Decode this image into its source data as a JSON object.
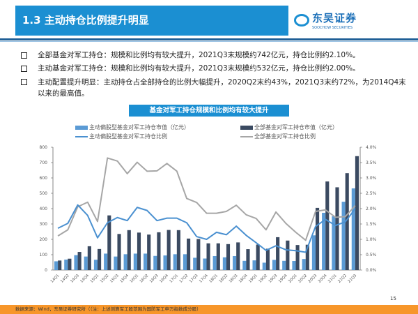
{
  "header": {
    "title": "1.3 主动持仓比例提升明显",
    "logo_name": "东吴证券",
    "logo_en": "SOOCHOW SECURITIES"
  },
  "bullets": [
    "全部基金对军工持仓：规模和比例均有较大提升，2021Q3末规模约742亿元，持仓比例约2.10%。",
    "主动基金对军工持仓：规模和比例均有较大提升，2021Q3末规模约532亿元，持仓比例约2.00%。",
    "主动配置提升明显：主动持仓占全部持仓的比例大幅提升，2020Q2末约43%，2021Q3末约72%，为2014Q4末以来的最高值。"
  ],
  "chart_data": {
    "type": "bar+line",
    "title": "基金对军工持仓规模和比例均有较大提升",
    "legend_position": "top",
    "categories": [
      "14Q1",
      "14Q2",
      "14Q3",
      "14Q4",
      "15Q1",
      "15Q2",
      "15Q3",
      "15Q4",
      "16Q1",
      "16Q2",
      "16Q3",
      "16Q4",
      "17Q1",
      "17Q2",
      "17Q3",
      "17Q4",
      "18Q1",
      "18Q2",
      "18Q3",
      "18Q4",
      "19Q1",
      "19Q2",
      "19Q3",
      "19Q4",
      "20Q1",
      "20Q2",
      "20Q3",
      "20Q4",
      "21Q1",
      "21Q2",
      "21Q3"
    ],
    "left_axis": {
      "ylim": [
        0,
        800
      ],
      "ticks": [
        "0",
        "100",
        "200",
        "300",
        "400",
        "500",
        "600",
        "700",
        "800"
      ]
    },
    "right_axis": {
      "ylim": [
        0,
        4.0
      ],
      "ticks": [
        "0.0%",
        "0.5%",
        "1.0%",
        "1.5%",
        "2.0%",
        "2.5%",
        "3.0%",
        "3.5%",
        "4.0%"
      ]
    },
    "grid": false,
    "series": [
      {
        "name": "主动偏股型基金对军工持仓市值（亿元）",
        "type": "bar",
        "axis": "left",
        "color": "#5b9bd5",
        "values": [
          57,
          68,
          97,
          88,
          67,
          107,
          88,
          103,
          107,
          107,
          92,
          95,
          103,
          103,
          80,
          75,
          91,
          83,
          91,
          60,
          63,
          48,
          66,
          60,
          59,
          72,
          226,
          373,
          350,
          445,
          532
        ]
      },
      {
        "name": "全部基金对军工持仓市值（亿元）",
        "type": "bar",
        "axis": "left",
        "color": "#3b4a61",
        "values": [
          62,
          74,
          118,
          155,
          137,
          356,
          235,
          260,
          244,
          231,
          246,
          261,
          260,
          205,
          202,
          174,
          174,
          169,
          180,
          136,
          166,
          139,
          214,
          192,
          163,
          165,
          405,
          577,
          539,
          631,
          742
        ]
      },
      {
        "name": "主动偏股型基金对军工持仓比例",
        "type": "line",
        "axis": "right",
        "color": "#4a90d0",
        "values": [
          1.36,
          1.52,
          2.12,
          1.78,
          1.05,
          1.54,
          1.71,
          1.61,
          2.04,
          1.94,
          1.61,
          1.69,
          1.69,
          1.54,
          1.09,
          1.0,
          1.23,
          1.15,
          1.43,
          1.13,
          0.89,
          0.64,
          0.79,
          0.66,
          0.63,
          0.58,
          1.42,
          1.65,
          1.45,
          1.57,
          2.0
        ]
      },
      {
        "name": "全部基金对军工持仓比例",
        "type": "line",
        "axis": "right",
        "color": "#a6a6a6",
        "values": [
          1.11,
          1.31,
          2.06,
          2.21,
          1.58,
          3.65,
          3.55,
          3.14,
          3.51,
          3.22,
          3.23,
          3.47,
          3.22,
          2.33,
          2.2,
          1.85,
          1.85,
          1.91,
          2.11,
          1.8,
          1.68,
          1.31,
          1.89,
          1.52,
          1.23,
          0.97,
          1.91,
          1.96,
          1.72,
          1.74,
          2.1
        ]
      }
    ]
  },
  "page_number": "15",
  "footer": {
    "source": "数据来源：Wind，东吴证券研究所（（注：上述测算军工股范围为国防军工申万指数成分股）"
  }
}
